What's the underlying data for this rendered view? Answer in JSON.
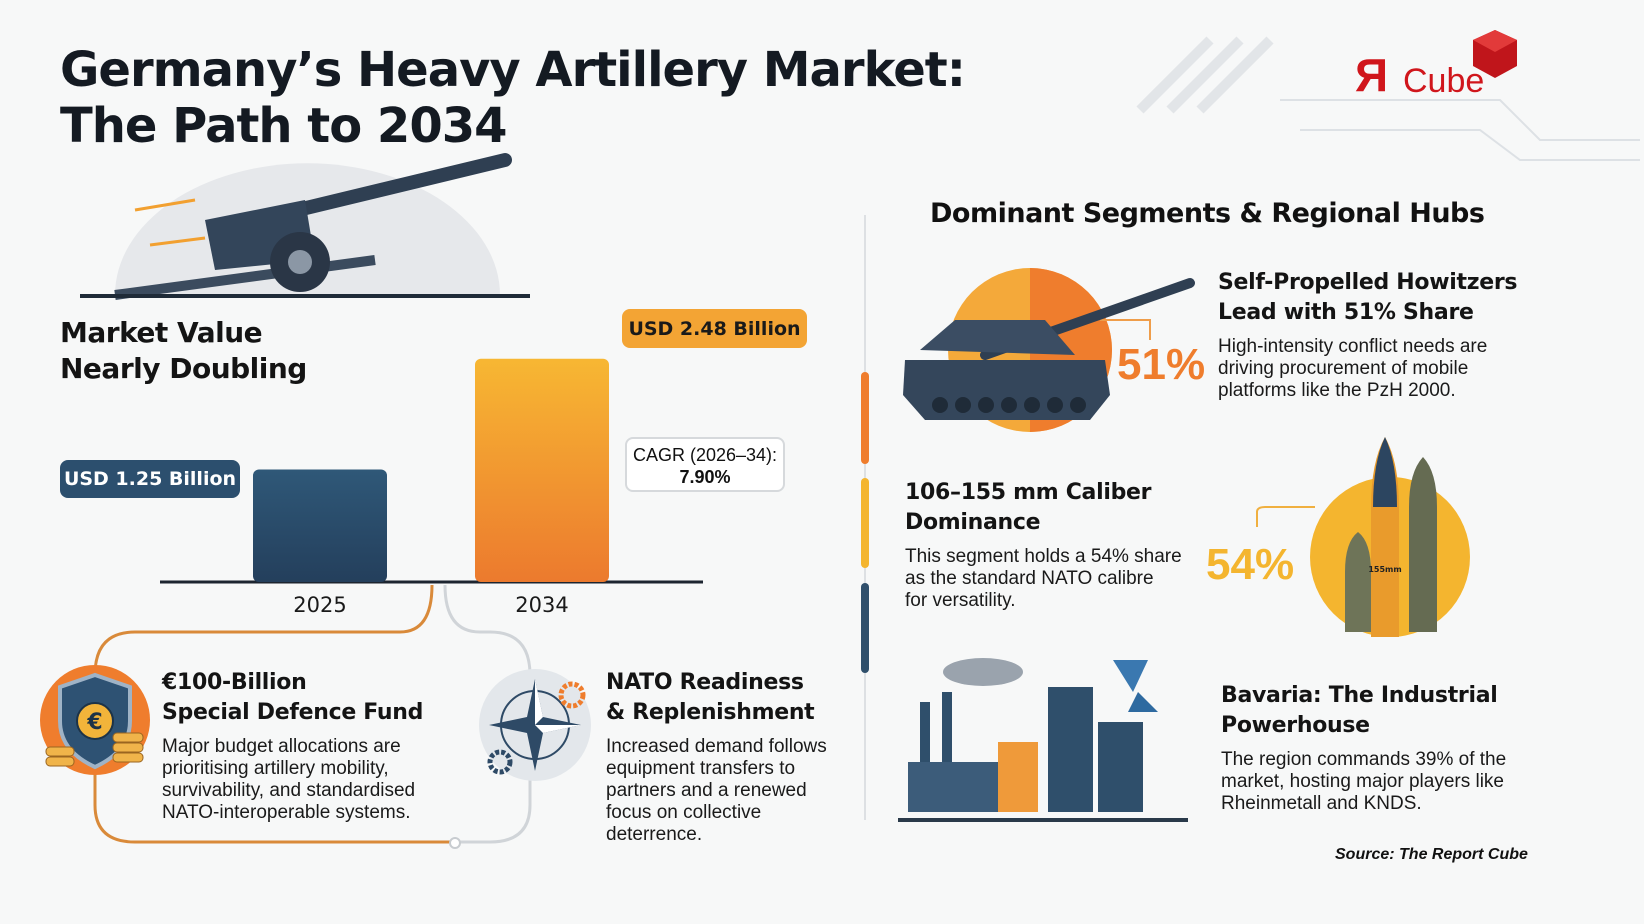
{
  "header": {
    "title_line1": "Germany’s Heavy Artillery Market:",
    "title_line2": "The Path to 2034",
    "logo_text_r": "Я",
    "logo_text_cube": "Cube"
  },
  "market": {
    "heading_line1": "Market Value",
    "heading_line2": "Nearly Doubling",
    "callout_2025": "USD 1.25 Billion",
    "callout_2034": "USD 2.48 Billion",
    "cagr_label": "CAGR (2026–34):",
    "cagr_value": "7.90%"
  },
  "chart_data": {
    "type": "bar",
    "categories": [
      "2025",
      "2034"
    ],
    "values": [
      1.25,
      2.48
    ],
    "unit": "USD Billion",
    "colors": [
      "#2c4f6e",
      "#f2a030"
    ],
    "grid": false
  },
  "drivers": [
    {
      "title_line1": "€100-Billion",
      "title_line2": "Special Defence Fund",
      "body": [
        "Major budget allocations are",
        "prioritising artillery mobility,",
        "survivability, and standardised",
        "NATO-interoperable systems."
      ],
      "icon": "shield-euro-icon"
    },
    {
      "title_line1": "NATO Readiness",
      "title_line2": "& Replenishment",
      "body": [
        "Increased demand follows",
        "equipment transfers to",
        "partners and a renewed",
        "focus on collective",
        "deterrence."
      ],
      "icon": "nato-compass-icon"
    }
  ],
  "segments": {
    "heading": "Dominant Segments & Regional Hubs",
    "items": [
      {
        "title_line1": "Self-Propelled Howitzers",
        "title_line2": "Lead with 51% Share",
        "percent": "51%",
        "body": [
          "High-intensity conflict needs are",
          "driving procurement of mobile",
          "platforms like the PzH 2000."
        ],
        "color": "#ef7d2d",
        "icon": "howitzer-tank-icon"
      },
      {
        "title_line1": "106–155 mm Caliber",
        "title_line2": "Dominance",
        "percent": "54%",
        "body": [
          "This segment holds a 54% share",
          "as the standard NATO calibre",
          "for versatility."
        ],
        "color": "#f4b52f",
        "icon": "artillery-shells-icon",
        "shell_label": "155mm"
      },
      {
        "title_line1": "Bavaria: The Industrial",
        "title_line2": "Powerhouse",
        "body": [
          "The region commands 39% of the",
          "market, hosting major players like",
          "Rheinmetall and KNDS."
        ],
        "color": "#2f4f6b",
        "icon": "factory-icon"
      }
    ]
  },
  "footer": {
    "source": "Source: The Report Cube"
  }
}
